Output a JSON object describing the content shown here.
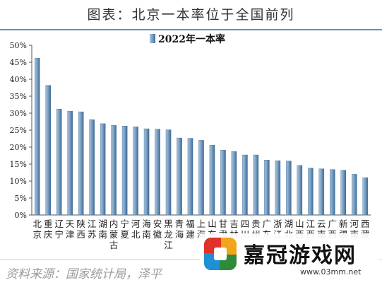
{
  "header": {
    "title": "图表：北京一本率位于全国前列"
  },
  "source": {
    "text": "资料来源：国家统计局，泽平"
  },
  "watermark": {
    "site_name": "嘉冠游戏网",
    "url": "www.03mm.net"
  },
  "chart_data": {
    "type": "bar",
    "series": [
      {
        "name": "2022年一本率",
        "values": [
          46.2,
          38.2,
          31.2,
          30.6,
          30.4,
          28.1,
          26.9,
          26.4,
          26.2,
          26.0,
          25.4,
          25.3,
          25.1,
          22.7,
          22.6,
          22.0,
          20.6,
          19.1,
          18.7,
          17.7,
          17.7,
          16.2,
          16.0,
          15.9,
          14.6,
          13.8,
          13.6,
          13.4,
          13.2,
          12.0,
          11.0
        ]
      }
    ],
    "categories": [
      [
        "北",
        "京"
      ],
      [
        "重",
        "庆"
      ],
      [
        "辽",
        "宁"
      ],
      [
        "天",
        "津"
      ],
      [
        "陕",
        "西"
      ],
      [
        "江",
        "苏"
      ],
      [
        "湖",
        "南"
      ],
      [
        "内",
        "蒙",
        "古"
      ],
      [
        "宁",
        "夏"
      ],
      [
        "河",
        "北"
      ],
      [
        "海",
        "南"
      ],
      [
        "安",
        "徽"
      ],
      [
        "黑",
        "龙",
        "江"
      ],
      [
        "青",
        "海"
      ],
      [
        "福",
        "建"
      ],
      [
        "上",
        "海"
      ],
      [
        "山",
        "东"
      ],
      [
        "甘",
        "肃"
      ],
      [
        "吉",
        "林"
      ],
      [
        "四",
        "川"
      ],
      [
        "贵",
        "州"
      ],
      [
        "广",
        "东"
      ],
      [
        "浙",
        "江"
      ],
      [
        "湖",
        "北"
      ],
      [
        "山",
        "西"
      ],
      [
        "江",
        "西"
      ],
      [
        "云",
        "南"
      ],
      [
        "广",
        "西"
      ],
      [
        "新",
        "疆"
      ],
      [
        "河",
        "南"
      ],
      [
        "西",
        "藏"
      ]
    ],
    "y_ticks": [
      "0%",
      "5%",
      "10%",
      "15%",
      "20%",
      "25%",
      "30%",
      "35%",
      "40%",
      "45%",
      "50%"
    ],
    "ylim": [
      0,
      50
    ],
    "y_unit": "%",
    "xlabel": "",
    "ylabel": "",
    "grid": false,
    "legend_position": "top-center",
    "bar_color": "#8fb0cf",
    "bar_dark_color": "#3e6b95"
  }
}
